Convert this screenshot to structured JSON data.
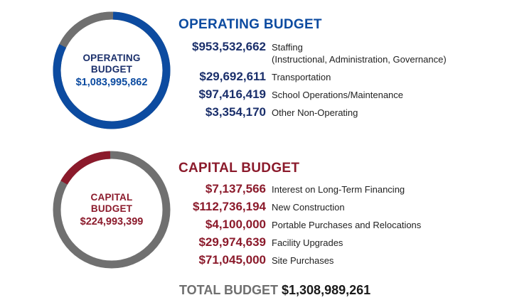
{
  "operating": {
    "title": "OPERATING BUDGET",
    "donut_line1": "OPERATING",
    "donut_line2": "BUDGET",
    "total": "$1,083,995,862",
    "items": [
      {
        "amount": "$953,532,662",
        "label_line1": "Staffing",
        "label_line2": "(Instructional, Administration, Governance)"
      },
      {
        "amount": "$29,692,611",
        "label": "Transportation"
      },
      {
        "amount": "$97,416,419",
        "label": "School Operations/Maintenance"
      },
      {
        "amount": "$3,354,170",
        "label": "Other Non-Operating"
      }
    ]
  },
  "capital": {
    "title": "CAPITAL BUDGET",
    "donut_line1": "CAPITAL",
    "donut_line2": "BUDGET",
    "total": "$224,993,399",
    "items": [
      {
        "amount": "$7,137,566",
        "label": "Interest on Long-Term Financing"
      },
      {
        "amount": "$112,736,194",
        "label": "New Construction"
      },
      {
        "amount": "$4,100,000",
        "label": "Portable Purchases and Relocations"
      },
      {
        "amount": "$29,974,639",
        "label": "Facility Upgrades"
      },
      {
        "amount": "$71,045,000",
        "label": "Site Purchases"
      }
    ]
  },
  "total_budget": {
    "label": "TOTAL BUDGET",
    "value": "$1,308,989,261"
  },
  "chart_data": [
    {
      "type": "pie",
      "title": "OPERATING BUDGET",
      "categories": [
        "Operating Budget",
        "Capital Budget"
      ],
      "values": [
        1083995862,
        224993399
      ],
      "colors": [
        "#0c4ba0",
        "#707070"
      ]
    },
    {
      "type": "pie",
      "title": "CAPITAL BUDGET",
      "categories": [
        "Capital Budget",
        "Operating Budget"
      ],
      "values": [
        224993399,
        1083995862
      ],
      "colors": [
        "#8b1a2b",
        "#707070"
      ]
    }
  ],
  "colors": {
    "operating": "#0c4ba0",
    "operating_dark": "#1a2f6b",
    "capital": "#8b1a2b",
    "gray": "#707070"
  }
}
